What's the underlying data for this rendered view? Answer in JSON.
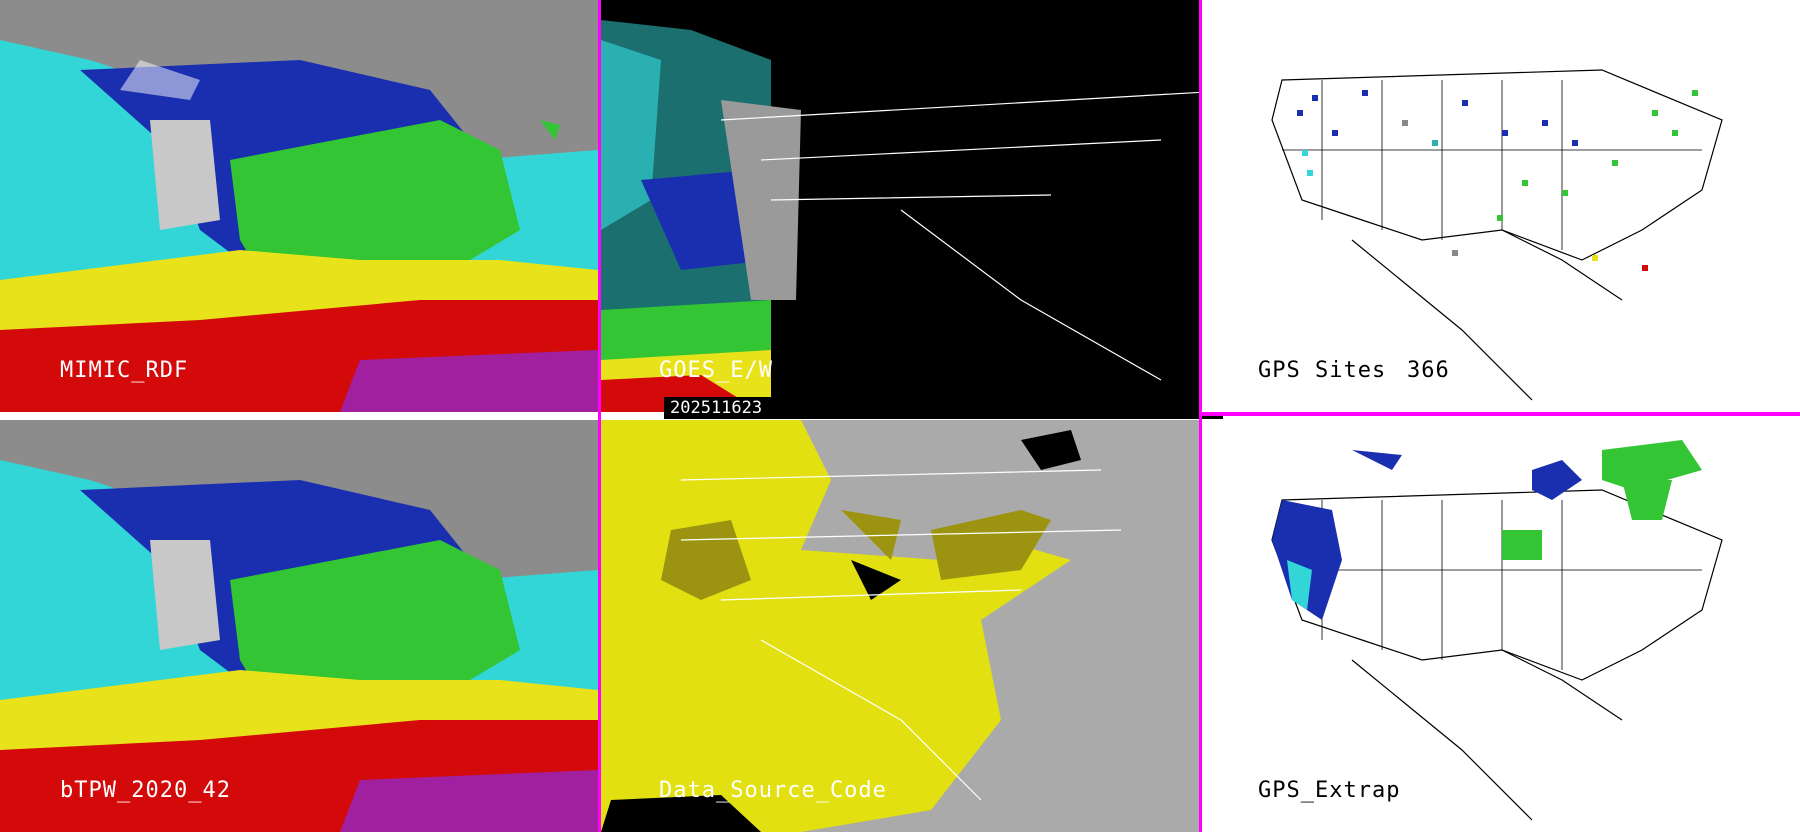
{
  "panels": {
    "mimic": {
      "label": "MIMIC_RDF"
    },
    "goes": {
      "label": "GOES_E/W",
      "timestamp": "202511623"
    },
    "gps_sites": {
      "label": "GPS Sites",
      "count": "366"
    },
    "btpw": {
      "label": "bTPW_2020_42"
    },
    "data_source": {
      "label": "Data_Source_Code"
    },
    "gps_extrap": {
      "label": "GPS_Extrap"
    }
  },
  "colors": {
    "divider": "#ff00ff",
    "ocean_cyan": "#33d6d6",
    "moisture_blue": "#1a2fb0",
    "moisture_green": "#33c533",
    "moisture_yellow": "#e8e21a",
    "moisture_red": "#d40a0a",
    "moisture_magenta": "#a020a0",
    "dry_gray": "#9a9a9a",
    "ds_gray": "#aaaaaa",
    "ds_yellow": "#e2e010",
    "ds_olive": "#9c9410"
  }
}
